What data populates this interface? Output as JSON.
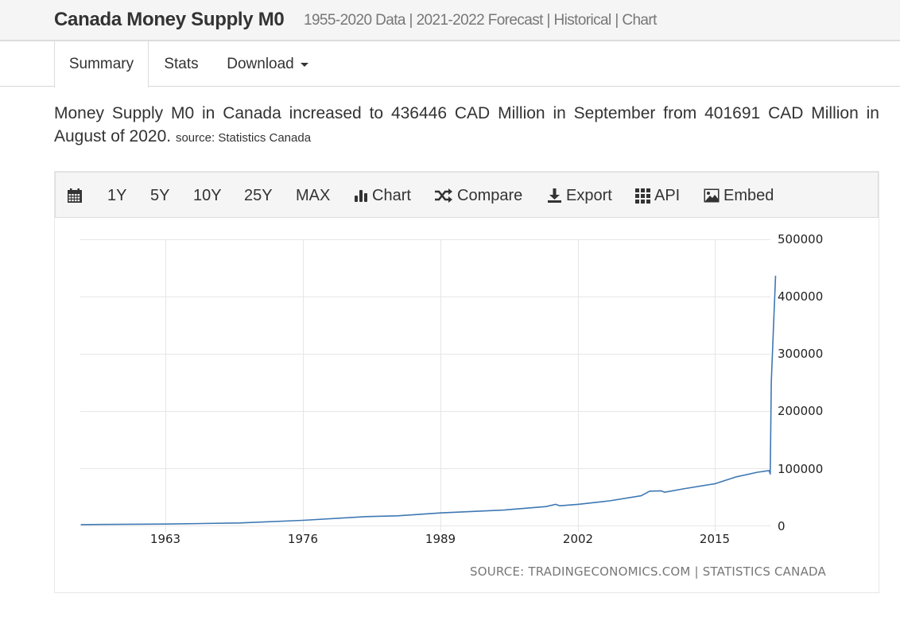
{
  "header": {
    "title": "Canada Money Supply M0",
    "subtitle": "1955-2020 Data | 2021-2022 Forecast | Historical | Chart"
  },
  "tabs": [
    {
      "label": "Summary",
      "active": true
    },
    {
      "label": "Stats",
      "active": false
    },
    {
      "label": "Download",
      "active": false,
      "dropdown": true
    }
  ],
  "summary": {
    "text": "Money Supply M0 in Canada increased to 436446 CAD Million in September from 401691 CAD Million in August of 2020.",
    "source": "source: Statistics Canada"
  },
  "toolbar": {
    "calendar_icon": "calendar-icon",
    "ranges": [
      "1Y",
      "5Y",
      "10Y",
      "25Y",
      "MAX"
    ],
    "chart_label": "Chart",
    "compare_label": "Compare",
    "export_label": "Export",
    "api_label": "API",
    "embed_label": "Embed"
  },
  "chart_source": "SOURCE: TRADINGECONOMICS.COM | STATISTICS CANADA",
  "colors": {
    "line": "#3d78b3",
    "grid": "#e6e6e6",
    "toolbar_bg": "#f5f5f5"
  },
  "chart_data": {
    "type": "line",
    "title": "Canada Money Supply M0",
    "xlabel": "",
    "ylabel": "CAD Million",
    "x_tick_labels": [
      "1963",
      "1976",
      "1989",
      "2002",
      "2015"
    ],
    "y_tick_labels": [
      "0",
      "100000",
      "200000",
      "300000",
      "400000",
      "500000"
    ],
    "ylim": [
      0,
      500000
    ],
    "xlim": [
      1955,
      2020.75
    ],
    "grid": true,
    "legend": null,
    "series": [
      {
        "name": "Money Supply M0",
        "x": [
          1955,
          1963,
          1970,
          1976,
          1982,
          1985,
          1989,
          1995,
          1999,
          1999.9,
          2000.3,
          2002,
          2005,
          2008,
          2008.8,
          2009.9,
          2010.2,
          2012,
          2015,
          2017,
          2019,
          2020.1,
          2020.2,
          2020.3,
          2020.55,
          2020.63,
          2020.71
        ],
        "values": [
          1500,
          2500,
          4500,
          9000,
          15500,
          17000,
          22000,
          27000,
          33000,
          37000,
          34500,
          37000,
          43000,
          52000,
          60000,
          60500,
          58000,
          64000,
          73000,
          85000,
          93000,
          96000,
          90000,
          250000,
          365000,
          401691,
          436446
        ]
      }
    ],
    "annotations": [
      "SOURCE: TRADINGECONOMICS.COM | STATISTICS CANADA"
    ]
  }
}
